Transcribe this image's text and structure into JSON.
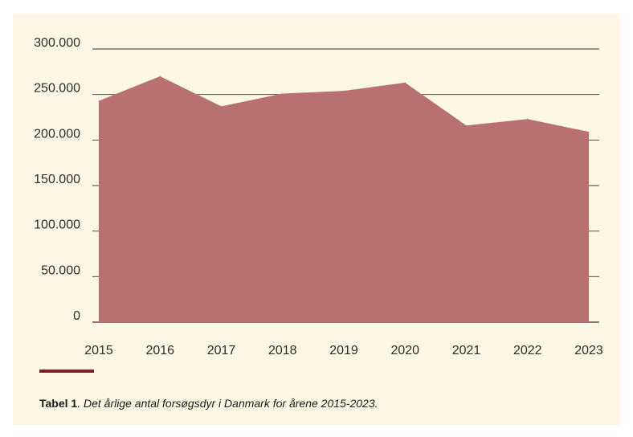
{
  "chart_data": {
    "type": "area",
    "title": "",
    "xlabel": "",
    "ylabel": "",
    "x": [
      "2015",
      "2016",
      "2017",
      "2018",
      "2019",
      "2020",
      "2021",
      "2022",
      "2023"
    ],
    "series": [
      {
        "values": [
          243000,
          270000,
          237000,
          251000,
          254000,
          263000,
          216000,
          223000,
          209000
        ]
      }
    ],
    "ylim": [
      0,
      300000
    ],
    "yticks": [
      "0",
      "50.000",
      "100.000",
      "150.000",
      "200.000",
      "250.000",
      "300.000"
    ],
    "grid": true,
    "legend": "none",
    "colors": {
      "fill": "#b87070",
      "grid": "#4a3030",
      "panel": "#fdf7e6",
      "accent": "#7b1e2e"
    }
  },
  "caption": {
    "label": "Tabel 1",
    "text": ". Det årlige antal forsøgsdyr i Danmark for årene 2015-2023."
  }
}
